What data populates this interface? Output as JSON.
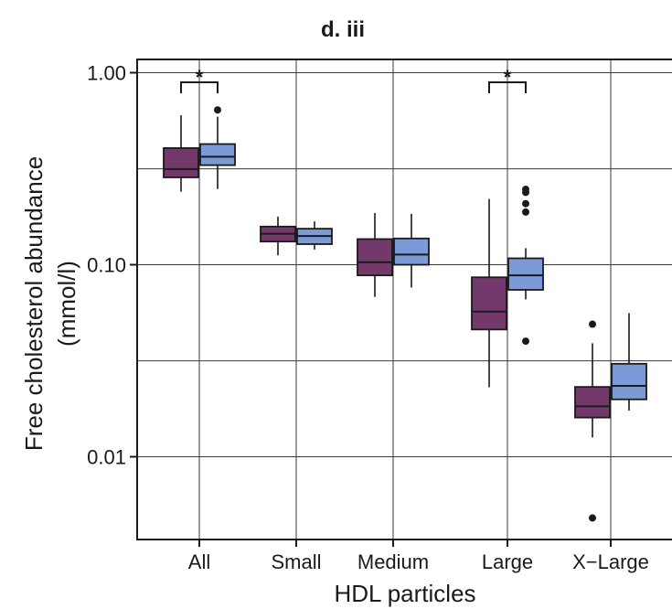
{
  "chart_data": {
    "type": "box",
    "title": "d. iii",
    "xlabel": "HDL particles",
    "ylabel_lines": [
      "Free cholesterol abundance",
      "(mmol/l)"
    ],
    "y_scale": "log10",
    "ylim": [
      0.0038,
      1.1
    ],
    "y_ticks": [
      {
        "value": 0.01,
        "label": "0.01"
      },
      {
        "value": 0.1,
        "label": "0.10"
      },
      {
        "value": 1.0,
        "label": "1.00"
      }
    ],
    "y_minor_gridlines": [
      0.0316,
      0.316
    ],
    "grid": true,
    "categories": [
      "All",
      "Small",
      "Medium",
      "Large",
      "X−Large"
    ],
    "series": [
      {
        "color": "#74396b",
        "boxes": [
          {
            "whisker_low": 0.24,
            "q1": 0.285,
            "median": 0.315,
            "q3": 0.405,
            "whisker_high": 0.6,
            "outliers": []
          },
          {
            "whisker_low": 0.112,
            "q1": 0.132,
            "median": 0.145,
            "q3": 0.158,
            "whisker_high": 0.178,
            "outliers": []
          },
          {
            "whisker_low": 0.068,
            "q1": 0.088,
            "median": 0.103,
            "q3": 0.136,
            "whisker_high": 0.186,
            "outliers": []
          },
          {
            "whisker_low": 0.023,
            "q1": 0.046,
            "median": 0.057,
            "q3": 0.086,
            "whisker_high": 0.22,
            "outliers": []
          },
          {
            "whisker_low": 0.0126,
            "q1": 0.016,
            "median": 0.0183,
            "q3": 0.0231,
            "whisker_high": 0.039,
            "outliers": [
              0.0048,
              0.049
            ]
          }
        ]
      },
      {
        "color": "#7b9bd8",
        "boxes": [
          {
            "whisker_low": 0.248,
            "q1": 0.33,
            "median": 0.365,
            "q3": 0.425,
            "whisker_high": 0.59,
            "outliers": [
              0.64
            ]
          },
          {
            "whisker_low": 0.12,
            "q1": 0.128,
            "median": 0.141,
            "q3": 0.154,
            "whisker_high": 0.168,
            "outliers": []
          },
          {
            "whisker_low": 0.076,
            "q1": 0.1,
            "median": 0.113,
            "q3": 0.137,
            "whisker_high": 0.184,
            "outliers": []
          },
          {
            "whisker_low": 0.066,
            "q1": 0.074,
            "median": 0.088,
            "q3": 0.108,
            "whisker_high": 0.122,
            "outliers": [
              0.04,
              0.188,
              0.208,
              0.238,
              0.247
            ]
          },
          {
            "whisker_low": 0.0174,
            "q1": 0.0199,
            "median": 0.0234,
            "q3": 0.0305,
            "whisker_high": 0.056,
            "outliers": []
          }
        ]
      }
    ],
    "significance": [
      {
        "category_index": 0,
        "label": "*"
      },
      {
        "category_index": 3,
        "label": "*"
      }
    ]
  }
}
